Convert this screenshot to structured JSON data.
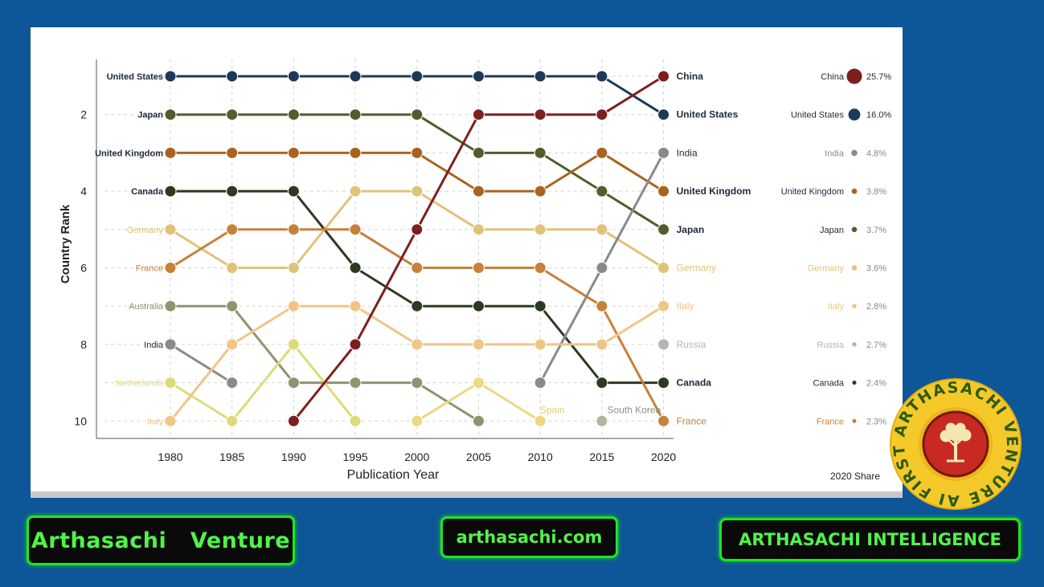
{
  "chart_data": {
    "type": "line",
    "subtype": "bump",
    "xlabel": "Publication Year",
    "ylabel": "Country Rank",
    "x": [
      1980,
      1985,
      1990,
      1995,
      2000,
      2005,
      2010,
      2015,
      2020
    ],
    "y_ticks": [
      2,
      4,
      6,
      8,
      10
    ],
    "ylim": [
      10,
      1
    ],
    "y_inverted": true,
    "grid": true,
    "series": [
      {
        "name": "United States",
        "color": "#1c3a56",
        "ranks": [
          1,
          1,
          1,
          1,
          1,
          1,
          1,
          1,
          2
        ]
      },
      {
        "name": "Japan",
        "color": "#4f5e2c",
        "ranks": [
          2,
          2,
          2,
          2,
          2,
          3,
          3,
          4,
          5
        ]
      },
      {
        "name": "United Kingdom",
        "color": "#a8641f",
        "ranks": [
          3,
          3,
          3,
          3,
          3,
          4,
          4,
          3,
          4
        ]
      },
      {
        "name": "Canada",
        "color": "#2c3a22",
        "ranks": [
          4,
          4,
          4,
          6,
          7,
          7,
          7,
          9,
          9
        ]
      },
      {
        "name": "Germany",
        "color": "#e0c27a",
        "ranks": [
          5,
          6,
          6,
          4,
          4,
          5,
          5,
          5,
          6
        ]
      },
      {
        "name": "France",
        "color": "#c6813a",
        "ranks": [
          6,
          5,
          5,
          5,
          6,
          6,
          6,
          7,
          10
        ]
      },
      {
        "name": "Australia",
        "color": "#8c9570",
        "ranks": [
          7,
          7,
          9,
          9,
          9,
          10,
          null,
          null,
          null
        ]
      },
      {
        "name": "India",
        "color": "#8a8a8a",
        "ranks": [
          8,
          9,
          null,
          null,
          null,
          null,
          9,
          6,
          3
        ]
      },
      {
        "name": "Netherlands",
        "color": "#dddb78",
        "ranks": [
          9,
          10,
          8,
          10,
          null,
          null,
          null,
          null,
          null
        ]
      },
      {
        "name": "Italy",
        "color": "#efc685",
        "ranks": [
          10,
          8,
          7,
          7,
          8,
          8,
          8,
          8,
          7
        ]
      },
      {
        "name": "China",
        "color": "#7e1f1f",
        "ranks": [
          null,
          null,
          10,
          8,
          5,
          2,
          2,
          2,
          1
        ]
      },
      {
        "name": "Spain",
        "color": "#ecd980",
        "ranks": [
          null,
          null,
          null,
          null,
          10,
          9,
          10,
          null,
          null
        ]
      },
      {
        "name": "Russia",
        "color": "#b5b5b5",
        "ranks": [
          null,
          null,
          null,
          null,
          null,
          null,
          null,
          null,
          8
        ]
      },
      {
        "name": "South Korea",
        "color": "#b3b5a0",
        "ranks": [
          null,
          null,
          null,
          null,
          null,
          null,
          null,
          10,
          null
        ]
      }
    ],
    "left_labels": [
      "United States",
      "Japan",
      "United Kingdom",
      "Canada",
      "Germany",
      "France",
      "Australia",
      "India",
      "Netherlands",
      "Italy"
    ],
    "right_labels": [
      "China",
      "United States",
      "India",
      "United Kingdom",
      "Japan",
      "Germany",
      "Italy",
      "Russia",
      "Canada",
      "France"
    ],
    "inline_labels": [
      {
        "text": "Spain",
        "color": "#e6cf70"
      },
      {
        "text": "South Korea",
        "color": "#8e8e8e"
      }
    ],
    "share": {
      "title": "2020 Share",
      "items": [
        {
          "country": "China",
          "value": 25.7,
          "label": "25.7%",
          "color": "#7e1f1f"
        },
        {
          "country": "United States",
          "value": 16.0,
          "label": "16.0%",
          "color": "#1c3a56"
        },
        {
          "country": "India",
          "value": 4.8,
          "label": "4.8%",
          "color": "#8a8a8a"
        },
        {
          "country": "United Kingdom",
          "value": 3.8,
          "label": "3.8%",
          "color": "#a8641f"
        },
        {
          "country": "Japan",
          "value": 3.7,
          "label": "3.7%",
          "color": "#4f5e2c"
        },
        {
          "country": "Germany",
          "value": 3.6,
          "label": "3.6%",
          "color": "#e0c27a"
        },
        {
          "country": "Italy",
          "value": 2.8,
          "label": "2.8%",
          "color": "#efc685"
        },
        {
          "country": "Russia",
          "value": 2.7,
          "label": "2.7%",
          "color": "#b5b5b5"
        },
        {
          "country": "Canada",
          "value": 2.4,
          "label": "2.4%",
          "color": "#2c3a22"
        },
        {
          "country": "France",
          "value": 2.3,
          "label": "2.3%",
          "color": "#c6813a"
        }
      ]
    }
  },
  "footer": {
    "venture": "Arthasachi   Venture",
    "site": "arthasachi.com",
    "intelligence": "ARTHASACHI INTELLIGENCE"
  },
  "logo": {
    "ring_text": "ARTHASACHI VENTURE AI FIRST",
    "ring_color": "#f5c92a",
    "inner_color": "#c62a22"
  }
}
